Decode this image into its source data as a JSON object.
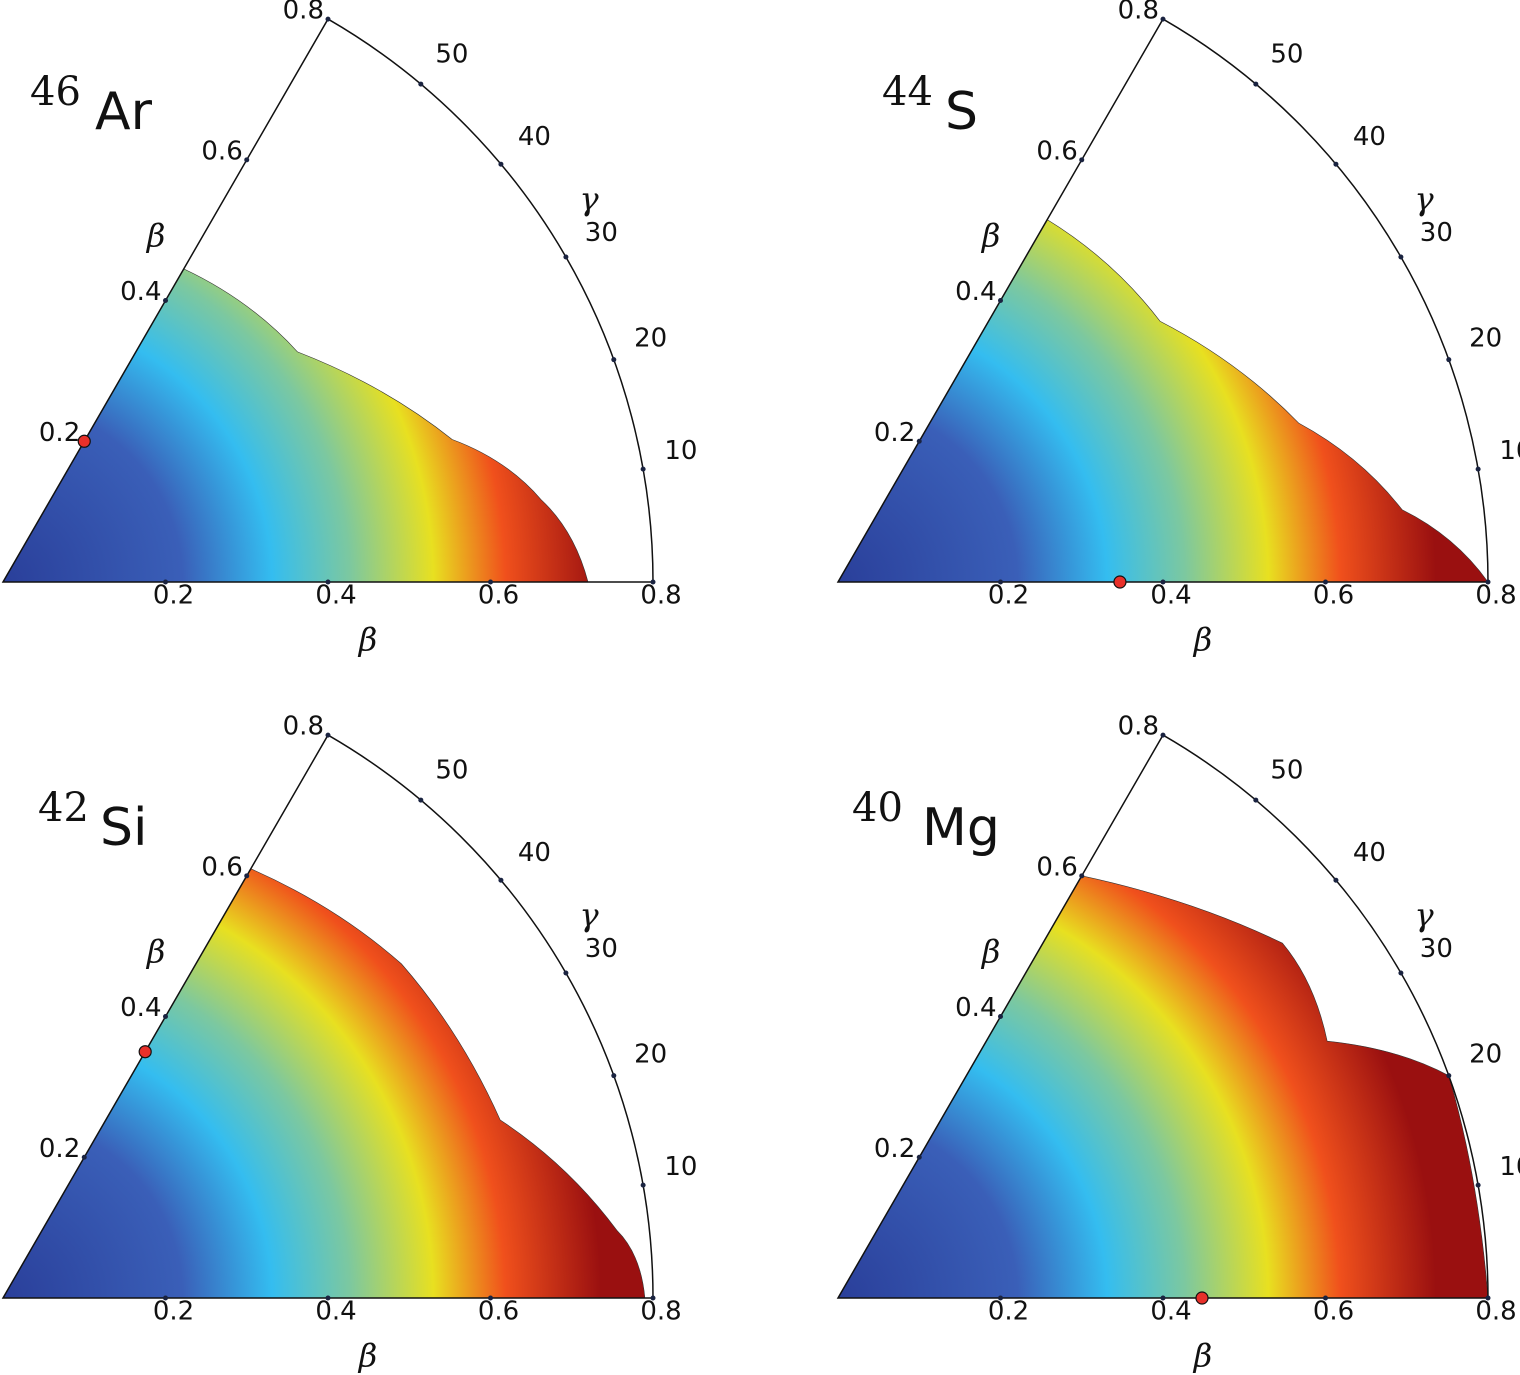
{
  "chart_data": [
    {
      "type": "polar-contour",
      "mass_number": "46",
      "element": "Ar",
      "x_label": "β",
      "y_label": "β",
      "angle_label": "γ",
      "beta_lim": [
        0,
        0.8
      ],
      "gamma_lim": [
        0,
        60
      ],
      "beta_ticks": [
        0.2,
        0.4,
        0.6,
        0.8
      ],
      "gamma_ticks": [
        10,
        20,
        30,
        40,
        50
      ],
      "minimum": {
        "beta": 0.2,
        "gamma": 60
      },
      "surface_edge": {
        "beta": [
          0.445,
          0.46,
          0.58,
          0.67,
          0.72
        ],
        "gamma": [
          60,
          38,
          17.6,
          8.7,
          0
        ]
      }
    },
    {
      "type": "polar-contour",
      "mass_number": "44",
      "element": "S",
      "x_label": "β",
      "y_label": "β",
      "angle_label": "γ",
      "beta_lim": [
        0,
        0.8
      ],
      "gamma_lim": [
        0,
        60
      ],
      "beta_ticks": [
        0.2,
        0.4,
        0.6,
        0.8
      ],
      "gamma_ticks": [
        10,
        20,
        30,
        40,
        50
      ],
      "minimum": {
        "beta": 0.347,
        "gamma": 0
      },
      "surface_edge": {
        "beta": [
          0.515,
          0.51,
          0.6,
          0.7,
          0.8
        ],
        "gamma": [
          60,
          39,
          19,
          7.3,
          0
        ]
      }
    },
    {
      "type": "polar-contour",
      "mass_number": "42",
      "element": "Si",
      "x_label": "β",
      "y_label": "β",
      "angle_label": "γ",
      "beta_lim": [
        0,
        0.8
      ],
      "gamma_lim": [
        0,
        60
      ],
      "beta_ticks": [
        0.2,
        0.4,
        0.6,
        0.8
      ],
      "gamma_ticks": [
        10,
        20,
        30,
        40,
        50
      ],
      "minimum": {
        "beta": 0.35,
        "gamma": 60
      },
      "surface_edge": {
        "beta": [
          0.61,
          0.64,
          0.65,
          0.76,
          0.79
        ],
        "gamma": [
          60,
          40,
          19.7,
          6.3,
          0
        ]
      }
    },
    {
      "type": "polar-contour",
      "mass_number": "40",
      "element": "Mg",
      "x_label": "β",
      "y_label": "β",
      "angle_label": "γ",
      "beta_lim": [
        0,
        0.8
      ],
      "gamma_lim": [
        0,
        60
      ],
      "beta_ticks": [
        0.2,
        0.4,
        0.6,
        0.8
      ],
      "gamma_ticks": [
        10,
        20,
        30,
        40,
        50
      ],
      "minimum": {
        "beta": 0.448,
        "gamma": 0
      },
      "surface_edge": {
        "beta": [
          0.6,
          0.7,
          0.68,
          0.8,
          0.8
        ],
        "gamma": [
          60,
          38.6,
          27.7,
          20,
          0
        ]
      }
    }
  ]
}
